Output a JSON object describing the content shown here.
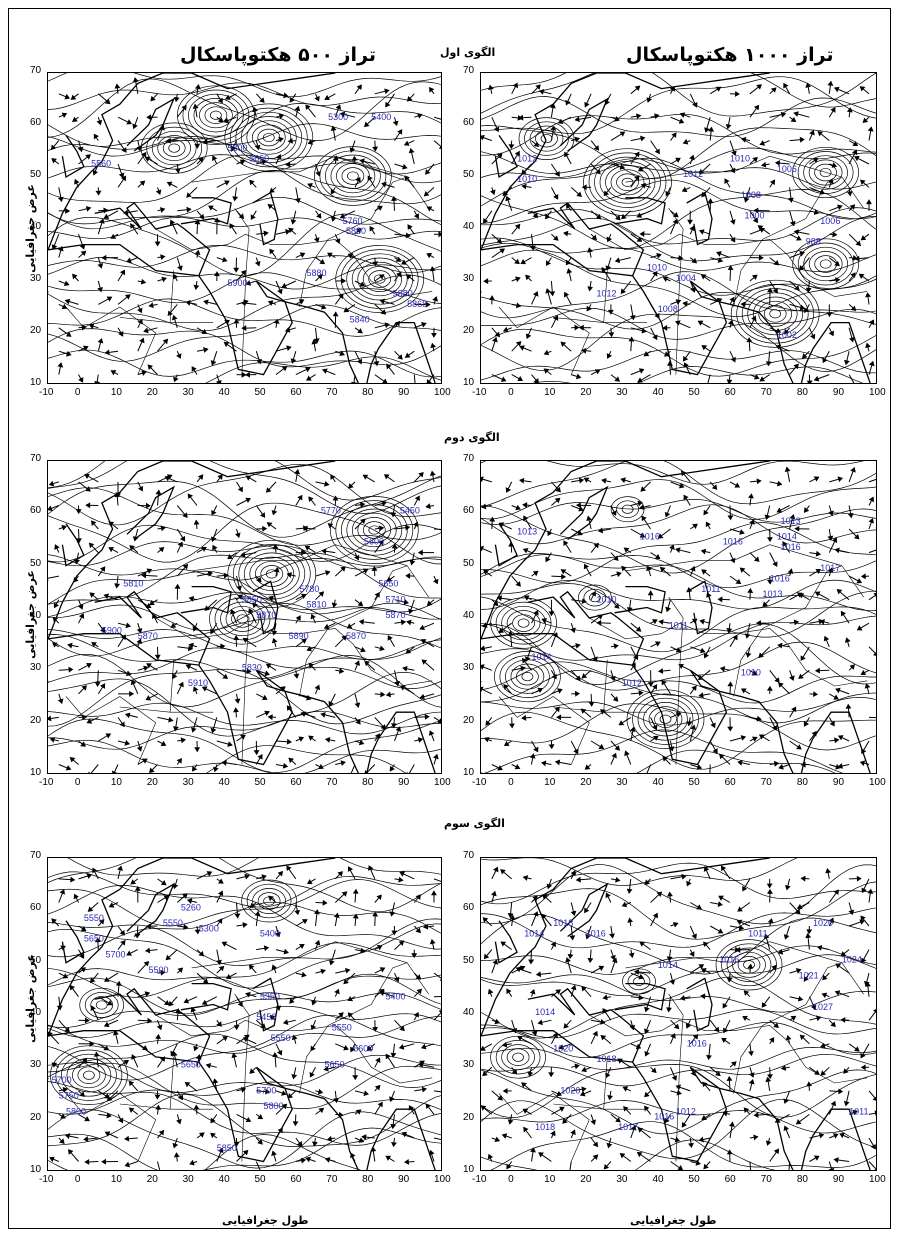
{
  "titles": {
    "left": "تراز ۵۰۰ هکتوپاسکال",
    "right": "تراز ۱۰۰۰ هکتوپاسکال"
  },
  "patterns": [
    "الگوی اول",
    "الگوی دوم",
    "الگوی سوم"
  ],
  "axis": {
    "xlabel": "طول جغرافیایی",
    "ylabel": "عرض جغرافیایی",
    "xticks": [
      "-10",
      "0",
      "10",
      "20",
      "30",
      "40",
      "50",
      "60",
      "70",
      "80",
      "90",
      "100"
    ],
    "yticks": [
      "10",
      "20",
      "30",
      "40",
      "50",
      "60",
      "70"
    ],
    "xrange": [
      -10,
      100
    ],
    "yrange": [
      10,
      70
    ]
  },
  "colors": {
    "contour": "#000000",
    "label": "#2a2ab8"
  },
  "panels": [
    {
      "id": "p1-500",
      "labels": [
        {
          "t": "5560",
          "x": 2,
          "y": 52
        },
        {
          "t": "5800",
          "x": 40,
          "y": 55
        },
        {
          "t": "5660",
          "x": 46,
          "y": 53
        },
        {
          "t": "5760",
          "x": 72,
          "y": 41
        },
        {
          "t": "5880",
          "x": 73,
          "y": 39
        },
        {
          "t": "5900",
          "x": 40,
          "y": 29
        },
        {
          "t": "5880",
          "x": 62,
          "y": 31
        },
        {
          "t": "5840",
          "x": 74,
          "y": 22
        },
        {
          "t": "5880",
          "x": 86,
          "y": 27
        },
        {
          "t": "5868",
          "x": 90,
          "y": 25
        },
        {
          "t": "5300",
          "x": 68,
          "y": 61
        },
        {
          "t": "5400",
          "x": 80,
          "y": 61
        }
      ]
    },
    {
      "id": "p1-1000",
      "labels": [
        {
          "t": "1012",
          "x": 0,
          "y": 53
        },
        {
          "t": "1010",
          "x": 0,
          "y": 49
        },
        {
          "t": "1012",
          "x": 46,
          "y": 50
        },
        {
          "t": "1010",
          "x": 59,
          "y": 53
        },
        {
          "t": "1006",
          "x": 72,
          "y": 51
        },
        {
          "t": "1008",
          "x": 62,
          "y": 46
        },
        {
          "t": "1000",
          "x": 63,
          "y": 42
        },
        {
          "t": "1006",
          "x": 84,
          "y": 41
        },
        {
          "t": "988",
          "x": 80,
          "y": 37
        },
        {
          "t": "1010",
          "x": 36,
          "y": 32
        },
        {
          "t": "1004",
          "x": 44,
          "y": 30
        },
        {
          "t": "1012",
          "x": 22,
          "y": 27
        },
        {
          "t": "1008",
          "x": 39,
          "y": 24
        },
        {
          "t": "1002",
          "x": 72,
          "y": 19
        }
      ]
    },
    {
      "id": "p2-500",
      "labels": [
        {
          "t": "5770",
          "x": 66,
          "y": 60
        },
        {
          "t": "5450",
          "x": 88,
          "y": 60
        },
        {
          "t": "5600",
          "x": 78,
          "y": 54
        },
        {
          "t": "5650",
          "x": 82,
          "y": 46
        },
        {
          "t": "5710",
          "x": 84,
          "y": 43
        },
        {
          "t": "5870",
          "x": 84,
          "y": 40
        },
        {
          "t": "5780",
          "x": 60,
          "y": 45
        },
        {
          "t": "5810",
          "x": 62,
          "y": 42
        },
        {
          "t": "5850",
          "x": 44,
          "y": 43
        },
        {
          "t": "5870",
          "x": 48,
          "y": 40
        },
        {
          "t": "5890",
          "x": 57,
          "y": 36
        },
        {
          "t": "5870",
          "x": 73,
          "y": 36
        },
        {
          "t": "5830",
          "x": 44,
          "y": 30
        },
        {
          "t": "5910",
          "x": 29,
          "y": 27
        },
        {
          "t": "5810",
          "x": 11,
          "y": 46
        },
        {
          "t": "5870",
          "x": 15,
          "y": 36
        },
        {
          "t": "5900",
          "x": 5,
          "y": 37
        }
      ]
    },
    {
      "id": "p2-1000",
      "labels": [
        {
          "t": "1013",
          "x": 0,
          "y": 56
        },
        {
          "t": "1016",
          "x": 34,
          "y": 55
        },
        {
          "t": "1016",
          "x": 57,
          "y": 54
        },
        {
          "t": "1013",
          "x": 73,
          "y": 58
        },
        {
          "t": "1014",
          "x": 72,
          "y": 55
        },
        {
          "t": "1016",
          "x": 73,
          "y": 53
        },
        {
          "t": "1017",
          "x": 84,
          "y": 49
        },
        {
          "t": "1016",
          "x": 70,
          "y": 47
        },
        {
          "t": "1010",
          "x": 22,
          "y": 43
        },
        {
          "t": "1011",
          "x": 51,
          "y": 45
        },
        {
          "t": "1013",
          "x": 68,
          "y": 44
        },
        {
          "t": "1011",
          "x": 42,
          "y": 38
        },
        {
          "t": "1014",
          "x": 4,
          "y": 32
        },
        {
          "t": "1012",
          "x": 29,
          "y": 27
        },
        {
          "t": "1010",
          "x": 62,
          "y": 29
        }
      ]
    },
    {
      "id": "p3-500",
      "labels": [
        {
          "t": "5550",
          "x": 0,
          "y": 58
        },
        {
          "t": "5650",
          "x": 0,
          "y": 54
        },
        {
          "t": "5700",
          "x": 6,
          "y": 51
        },
        {
          "t": "5260",
          "x": 27,
          "y": 60
        },
        {
          "t": "5300",
          "x": 32,
          "y": 56
        },
        {
          "t": "5550",
          "x": 22,
          "y": 57
        },
        {
          "t": "5400",
          "x": 49,
          "y": 55
        },
        {
          "t": "5500",
          "x": 18,
          "y": 48
        },
        {
          "t": "5350",
          "x": 49,
          "y": 43
        },
        {
          "t": "5450",
          "x": 48,
          "y": 39
        },
        {
          "t": "5550",
          "x": 52,
          "y": 35
        },
        {
          "t": "5400",
          "x": 84,
          "y": 43
        },
        {
          "t": "5550",
          "x": 69,
          "y": 37
        },
        {
          "t": "5600",
          "x": 75,
          "y": 33
        },
        {
          "t": "5650",
          "x": 67,
          "y": 30
        },
        {
          "t": "5700",
          "x": -9,
          "y": 27
        },
        {
          "t": "5750",
          "x": -7,
          "y": 24
        },
        {
          "t": "5800",
          "x": -5,
          "y": 21
        },
        {
          "t": "5650",
          "x": 27,
          "y": 30
        },
        {
          "t": "5700",
          "x": 48,
          "y": 25
        },
        {
          "t": "5800",
          "x": 50,
          "y": 22
        },
        {
          "t": "5850",
          "x": 37,
          "y": 14
        }
      ]
    },
    {
      "id": "p3-1000",
      "labels": [
        {
          "t": "1014",
          "x": 2,
          "y": 55
        },
        {
          "t": "1018",
          "x": 10,
          "y": 57
        },
        {
          "t": "1016",
          "x": 19,
          "y": 55
        },
        {
          "t": "1014",
          "x": 39,
          "y": 49
        },
        {
          "t": "1016",
          "x": 56,
          "y": 50
        },
        {
          "t": "1011",
          "x": 64,
          "y": 55
        },
        {
          "t": "1020",
          "x": 82,
          "y": 57
        },
        {
          "t": "1021",
          "x": 78,
          "y": 47
        },
        {
          "t": "1024",
          "x": 90,
          "y": 50
        },
        {
          "t": "1027",
          "x": 82,
          "y": 41
        },
        {
          "t": "1014",
          "x": 5,
          "y": 40
        },
        {
          "t": "1020",
          "x": 10,
          "y": 33
        },
        {
          "t": "1018",
          "x": 22,
          "y": 31
        },
        {
          "t": "1016",
          "x": 47,
          "y": 34
        },
        {
          "t": "1020",
          "x": 12,
          "y": 25
        },
        {
          "t": "1018",
          "x": 5,
          "y": 18
        },
        {
          "t": "1017",
          "x": 28,
          "y": 18
        },
        {
          "t": "1016",
          "x": 38,
          "y": 20
        },
        {
          "t": "1012",
          "x": 44,
          "y": 21
        },
        {
          "t": "1011",
          "x": 92,
          "y": 21
        }
      ]
    }
  ]
}
